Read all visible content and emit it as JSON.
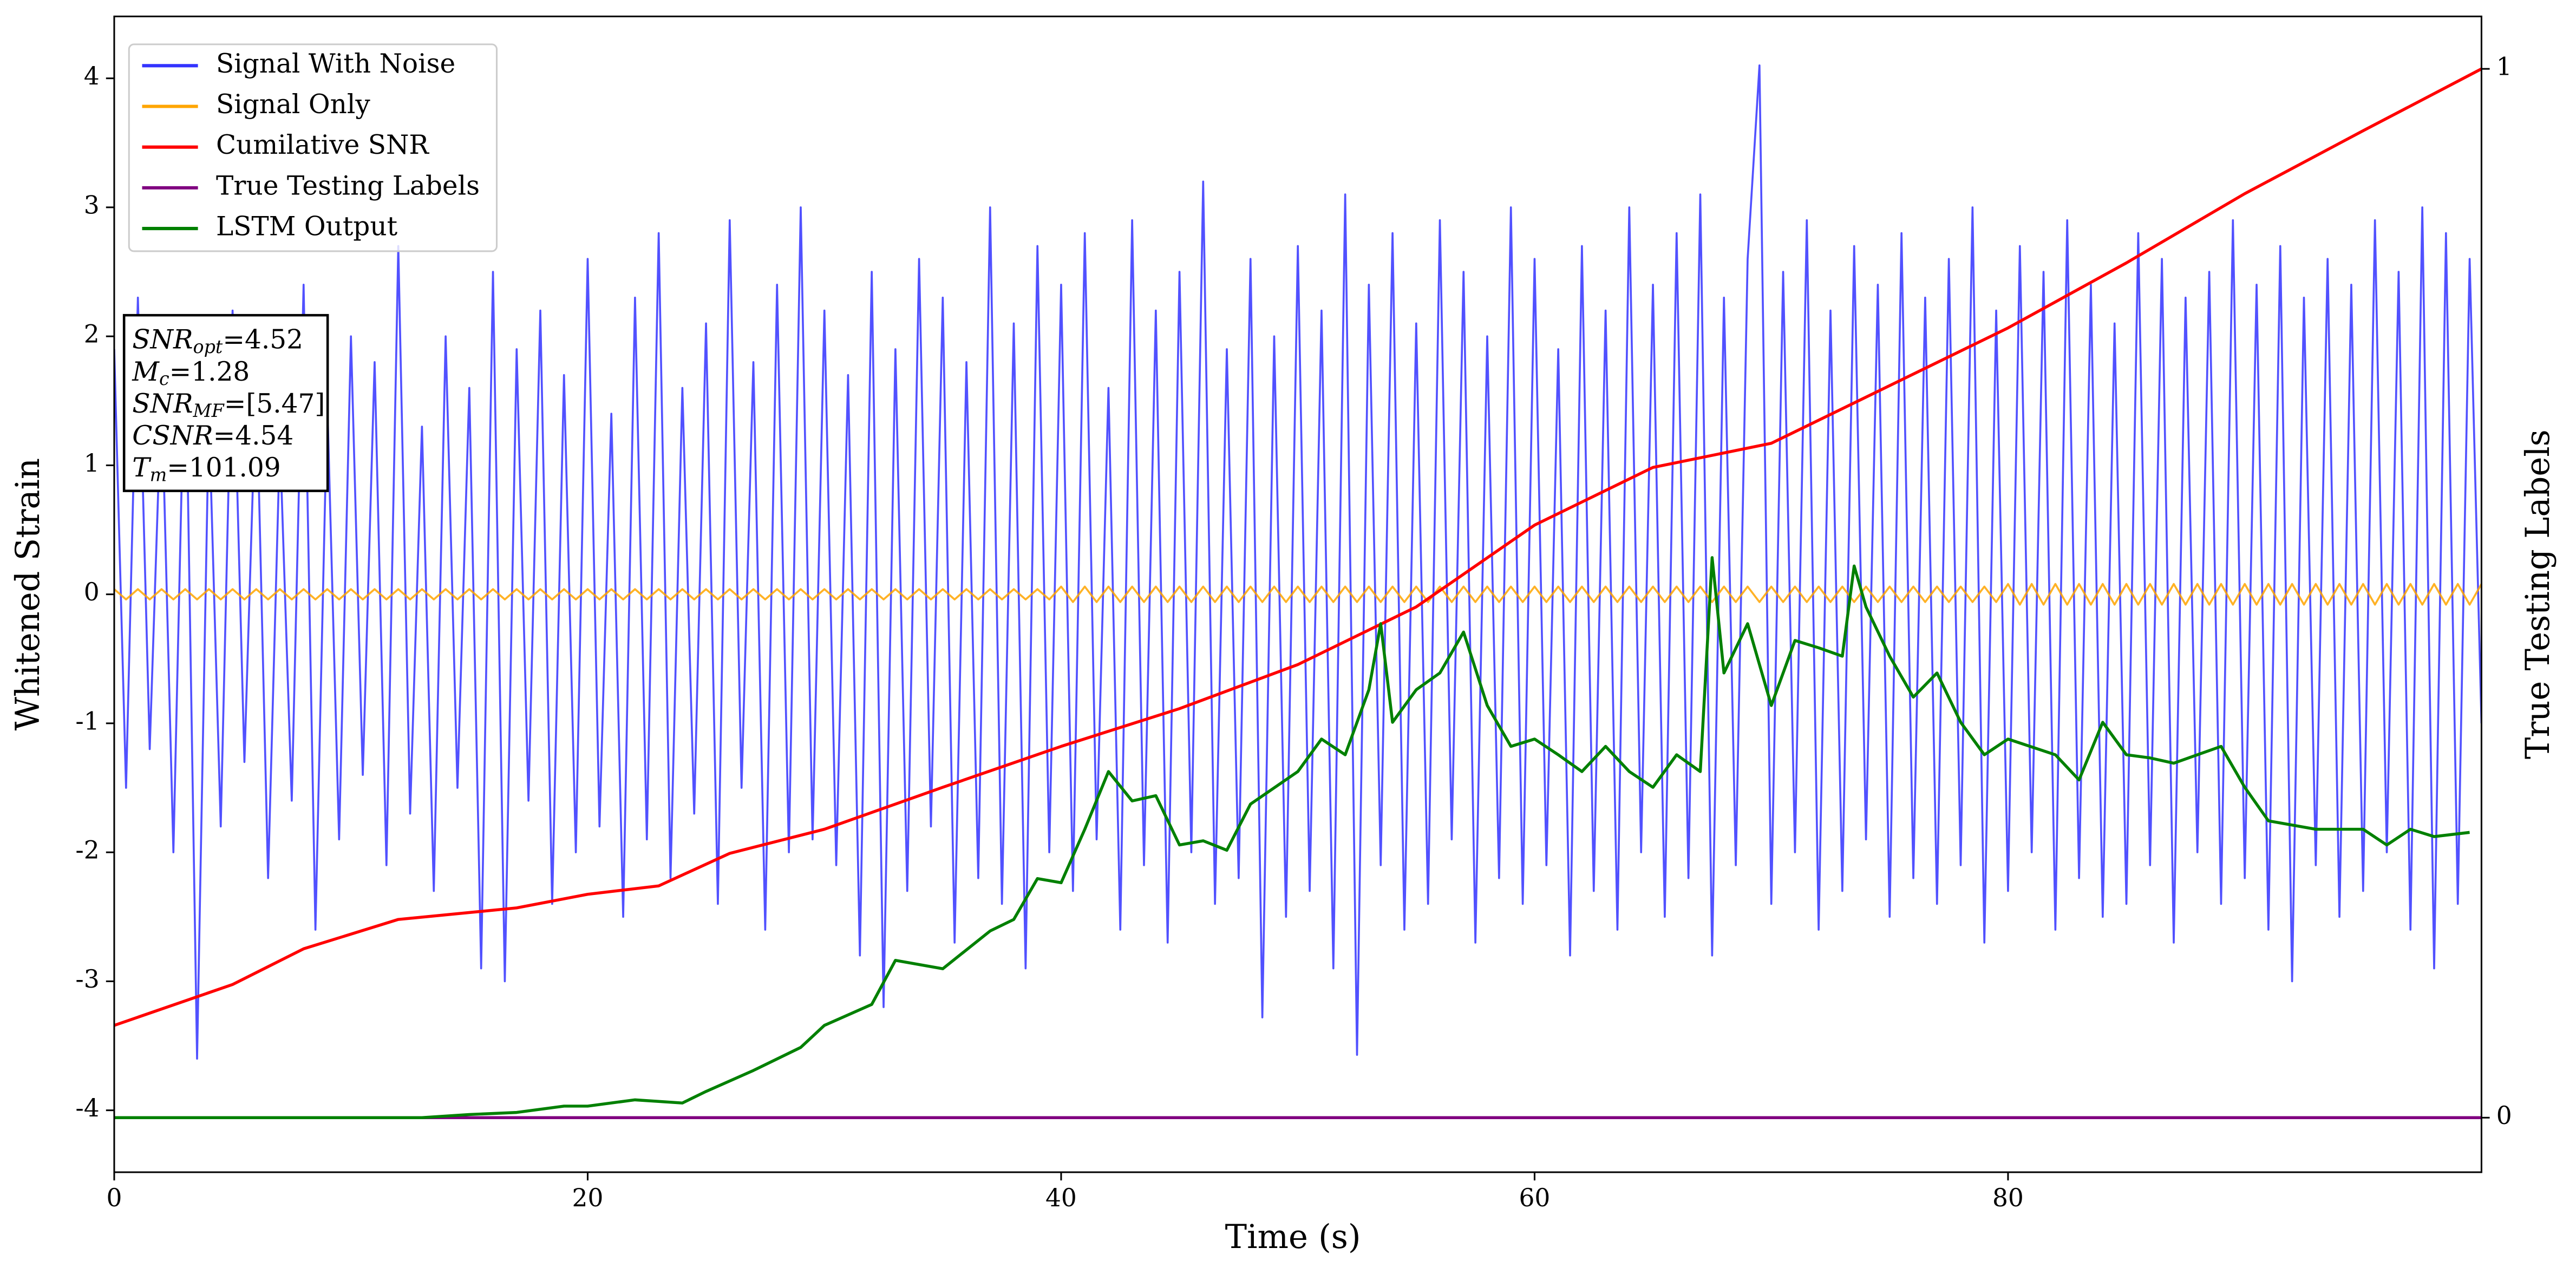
{
  "chart_data": {
    "type": "line",
    "xlabel": "Time (s)",
    "ylabel": "Whitened Strain",
    "y2label": "True Testing Labels",
    "xlim": [
      0,
      100
    ],
    "xticks": [
      0,
      20,
      40,
      60,
      80
    ],
    "ylim": [
      -4.48,
      4.48
    ],
    "yticks": [
      -4,
      -3,
      -2,
      -1,
      0,
      1,
      2,
      3,
      4
    ],
    "y2lim": [
      -0.052,
      1.05
    ],
    "y2ticks": [
      0,
      1
    ],
    "legend": "upper left",
    "x": [
      0,
      0.5,
      1,
      1.5,
      2,
      2.5,
      3,
      3.5,
      4,
      4.5,
      5,
      5.5,
      6,
      6.5,
      7,
      7.5,
      8,
      8.5,
      9,
      9.5,
      10,
      10.5,
      11,
      11.5,
      12,
      12.5,
      13,
      13.5,
      14,
      14.5,
      15,
      15.5,
      16,
      16.5,
      17,
      17.5,
      18,
      18.5,
      19,
      19.5,
      20,
      20.5,
      21,
      21.5,
      22,
      22.5,
      23,
      23.5,
      24,
      24.5,
      25,
      25.5,
      26,
      26.5,
      27,
      27.5,
      28,
      28.5,
      29,
      29.5,
      30,
      30.5,
      31,
      31.5,
      32,
      32.5,
      33,
      33.5,
      34,
      34.5,
      35,
      35.5,
      36,
      36.5,
      37,
      37.5,
      38,
      38.5,
      39,
      39.5,
      40,
      40.5,
      41,
      41.5,
      42,
      42.5,
      43,
      43.5,
      44,
      44.5,
      45,
      45.5,
      46,
      46.5,
      47,
      47.5,
      48,
      48.5,
      49,
      49.5,
      50,
      50.5,
      51,
      51.5,
      52,
      52.5,
      53,
      53.5,
      54,
      54.5,
      55,
      55.5,
      56,
      56.5,
      57,
      57.5,
      58,
      58.5,
      59,
      59.5,
      60,
      60.5,
      61,
      61.5,
      62,
      62.5,
      63,
      63.5,
      64,
      64.5,
      65,
      65.5,
      66,
      66.5,
      67,
      67.5,
      68,
      68.5,
      69,
      69.5,
      70,
      70.5,
      71,
      71.5,
      72,
      72.5,
      73,
      73.5,
      74,
      74.5,
      75,
      75.5,
      76,
      76.5,
      77,
      77.5,
      78,
      78.5,
      79,
      79.5,
      80,
      80.5,
      81,
      81.5,
      82,
      82.5,
      83,
      83.5,
      84,
      84.5,
      85,
      85.5,
      86,
      86.5,
      87,
      87.5,
      88,
      88.5,
      89,
      89.5,
      90,
      90.5,
      91,
      91.5,
      92,
      92.5,
      93,
      93.5,
      94,
      94.5,
      95,
      95.5,
      96,
      96.5,
      97,
      97.5,
      98,
      98.5,
      99,
      99.5,
      100
    ],
    "series": [
      {
        "name": "Signal With Noise",
        "color": "#3333ff",
        "values": [
          1.9,
          -1.5,
          2.3,
          -1.2,
          1.6,
          -2.0,
          2.1,
          -3.6,
          1.4,
          -1.8,
          2.2,
          -1.3,
          1.7,
          -2.2,
          1.2,
          -1.6,
          2.4,
          -2.6,
          1.5,
          -1.9,
          2.0,
          -1.4,
          1.8,
          -2.1,
          2.7,
          -1.7,
          1.3,
          -2.3,
          2.0,
          -1.5,
          1.6,
          -2.9,
          2.5,
          -3.0,
          1.9,
          -1.6,
          2.2,
          -2.4,
          1.7,
          -2.0,
          2.6,
          -1.8,
          1.4,
          -2.5,
          2.3,
          -1.9,
          2.8,
          -2.2,
          1.6,
          -1.7,
          2.1,
          -2.4,
          2.9,
          -1.5,
          1.8,
          -2.6,
          2.4,
          -2.0,
          3.0,
          -1.9,
          2.2,
          -2.1,
          1.7,
          -2.8,
          2.5,
          -3.2,
          1.9,
          -2.3,
          2.6,
          -1.8,
          2.3,
          -2.7,
          1.8,
          -2.2,
          3.0,
          -2.4,
          2.1,
          -2.9,
          2.7,
          -2.0,
          2.4,
          -2.3,
          2.8,
          -1.9,
          1.6,
          -2.6,
          2.9,
          -2.1,
          2.2,
          -2.7,
          2.5,
          -2.0,
          3.2,
          -2.4,
          1.9,
          -2.2,
          2.6,
          -3.28,
          2.0,
          -2.5,
          2.7,
          -2.3,
          2.2,
          -2.9,
          3.1,
          -3.57,
          2.4,
          -2.1,
          2.8,
          -2.6,
          2.1,
          -2.4,
          2.9,
          -1.9,
          2.5,
          -2.7,
          2.0,
          -2.2,
          3.0,
          -2.4,
          2.6,
          -2.1,
          1.9,
          -2.8,
          2.7,
          -2.3,
          2.2,
          -2.6,
          3.0,
          -2.0,
          2.4,
          -2.5,
          2.8,
          -2.2,
          3.1,
          -2.8,
          2.3,
          -2.1,
          2.6,
          4.1,
          -2.4,
          2.5,
          -2.0,
          2.9,
          -2.6,
          2.2,
          -2.3,
          2.7,
          -1.9,
          2.4,
          -2.5,
          2.8,
          -2.2,
          2.3,
          -2.4,
          2.6,
          -2.1,
          3.0,
          -2.7,
          2.2,
          -2.3,
          2.7,
          -2.0,
          2.5,
          -2.6,
          2.9,
          -2.2,
          2.4,
          -2.5,
          2.1,
          -2.4,
          2.8,
          -2.1,
          2.6,
          -2.7,
          2.3,
          -2.0,
          2.5,
          -2.4,
          2.9,
          -2.2,
          2.4,
          -2.6,
          2.7,
          -3.0,
          2.3,
          -2.1,
          2.6,
          -2.5,
          2.4,
          -2.3,
          2.9,
          -2.0,
          2.5,
          -2.6,
          3.0,
          -2.9,
          2.8,
          -2.4,
          2.6,
          -1.0
        ]
      },
      {
        "name": "Signal Only",
        "color": "#ffa500",
        "values": [
          0.04,
          -0.04,
          0.04,
          -0.04,
          0.04,
          -0.04,
          0.04,
          -0.04,
          0.04,
          -0.04,
          0.04,
          -0.04,
          0.04,
          -0.04,
          0.04,
          -0.04,
          0.04,
          -0.04,
          0.04,
          -0.04,
          0.04,
          -0.04,
          0.04,
          -0.04,
          0.04,
          -0.04,
          0.04,
          -0.04,
          0.04,
          -0.04,
          0.04,
          -0.04,
          0.04,
          -0.04,
          0.04,
          -0.04,
          0.04,
          -0.04,
          0.04,
          -0.04,
          0.04,
          -0.04,
          0.04,
          -0.04,
          0.04,
          -0.04,
          0.04,
          -0.04,
          0.04,
          -0.04,
          0.04,
          -0.04,
          0.04,
          -0.04,
          0.04,
          -0.04,
          0.04,
          -0.04,
          0.04,
          -0.04,
          0.04,
          -0.04,
          0.04,
          -0.04,
          0.04,
          -0.04,
          0.04,
          -0.04,
          0.04,
          -0.04,
          0.04,
          -0.04,
          0.04,
          -0.04,
          0.04,
          -0.04,
          0.04,
          -0.04,
          0.04,
          -0.04,
          0.06,
          -0.06,
          0.06,
          -0.06,
          0.06,
          -0.06,
          0.06,
          -0.06,
          0.06,
          -0.06,
          0.06,
          -0.06,
          0.06,
          -0.06,
          0.06,
          -0.06,
          0.06,
          -0.06,
          0.06,
          -0.06,
          0.06,
          -0.06,
          0.06,
          -0.06,
          0.06,
          -0.06,
          0.06,
          -0.06,
          0.06,
          -0.06,
          0.06,
          -0.06,
          0.06,
          -0.06,
          0.06,
          -0.06,
          0.06,
          -0.06,
          0.06,
          -0.06,
          0.06,
          -0.06,
          0.06,
          -0.06,
          0.06,
          -0.06,
          0.06,
          -0.06,
          0.06,
          -0.06,
          0.06,
          -0.06,
          0.06,
          -0.06,
          0.06,
          -0.06,
          0.06,
          -0.06,
          0.06,
          -0.06,
          0.06,
          -0.06,
          0.06,
          -0.06,
          0.06,
          -0.06,
          0.06,
          -0.06,
          0.06,
          -0.06,
          0.06,
          -0.06,
          0.06,
          -0.06,
          0.06,
          -0.06,
          0.06,
          -0.06,
          0.06,
          -0.06,
          0.08,
          -0.08,
          0.08,
          -0.08,
          0.08,
          -0.08,
          0.08,
          -0.08,
          0.08,
          -0.08,
          0.08,
          -0.08,
          0.08,
          -0.08,
          0.08,
          -0.08,
          0.08,
          -0.08,
          0.08,
          -0.08,
          0.08,
          -0.08,
          0.08,
          -0.08,
          0.08,
          -0.08,
          0.08,
          -0.08,
          0.08,
          -0.08,
          0.08,
          -0.08,
          0.08,
          -0.08,
          0.08,
          -0.08,
          0.08,
          -0.08,
          0.08,
          -0.08,
          0.08
        ]
      },
      {
        "name": "Cumilative SNR",
        "color": "#ff0000",
        "axis": "y2",
        "x": [
          0,
          5,
          8,
          12,
          17,
          20,
          23,
          26,
          30,
          35,
          40,
          45,
          50,
          55,
          60,
          65,
          70,
          75,
          80,
          85,
          90,
          95,
          100
        ],
        "values": [
          0.088,
          0.127,
          0.161,
          0.189,
          0.2,
          0.213,
          0.221,
          0.252,
          0.275,
          0.315,
          0.354,
          0.39,
          0.432,
          0.487,
          0.565,
          0.62,
          0.643,
          0.698,
          0.753,
          0.815,
          0.881,
          0.941,
          1.0
        ]
      },
      {
        "name": "True Testing Labels",
        "color": "#800080",
        "axis": "y2",
        "x": [
          0,
          100
        ],
        "values": [
          0,
          0
        ]
      },
      {
        "name": "LSTM Output",
        "color": "#008000",
        "axis": "y2",
        "x": [
          0,
          13,
          15,
          17,
          19,
          20,
          22,
          24,
          25,
          27,
          29,
          30,
          32,
          33,
          35,
          37,
          38,
          39,
          40,
          41,
          42,
          43,
          44,
          45,
          46,
          47,
          48,
          50,
          51,
          52,
          53,
          53.5,
          54,
          55,
          56,
          57,
          58,
          59,
          60,
          61,
          62,
          63,
          64,
          65,
          66,
          67,
          67.5,
          68,
          69,
          70,
          71,
          72,
          73,
          73.5,
          74,
          75,
          76,
          77,
          78,
          79,
          80,
          82,
          83,
          84,
          85,
          86,
          87,
          89,
          90,
          91,
          93,
          95,
          96,
          97,
          98,
          99.5
        ],
        "values": [
          0,
          0,
          0.003,
          0.005,
          0.011,
          0.011,
          0.017,
          0.014,
          0.025,
          0.045,
          0.067,
          0.088,
          0.108,
          0.15,
          0.142,
          0.178,
          0.189,
          0.228,
          0.224,
          0.275,
          0.33,
          0.302,
          0.307,
          0.26,
          0.264,
          0.255,
          0.299,
          0.33,
          0.361,
          0.346,
          0.408,
          0.471,
          0.377,
          0.408,
          0.424,
          0.463,
          0.393,
          0.354,
          0.361,
          0.346,
          0.33,
          0.354,
          0.33,
          0.315,
          0.346,
          0.33,
          0.534,
          0.424,
          0.471,
          0.393,
          0.455,
          0.448,
          0.44,
          0.526,
          0.487,
          0.44,
          0.401,
          0.424,
          0.377,
          0.346,
          0.361,
          0.346,
          0.322,
          0.377,
          0.346,
          0.343,
          0.338,
          0.354,
          0.315,
          0.283,
          0.275,
          0.275,
          0.26,
          0.275,
          0.268,
          0.272
        ]
      }
    ],
    "annotations": [
      {
        "name": "SNR",
        "sub": "opt",
        "text": "=4.52"
      },
      {
        "name": "M",
        "sub": "c",
        "text": "=1.28"
      },
      {
        "name": "SNR",
        "sub": "MF",
        "text": "=[5.47]"
      },
      {
        "name": "CSNR",
        "text": "=4.54"
      },
      {
        "name": "T",
        "sub": "m",
        "text": "=101.09"
      }
    ]
  }
}
